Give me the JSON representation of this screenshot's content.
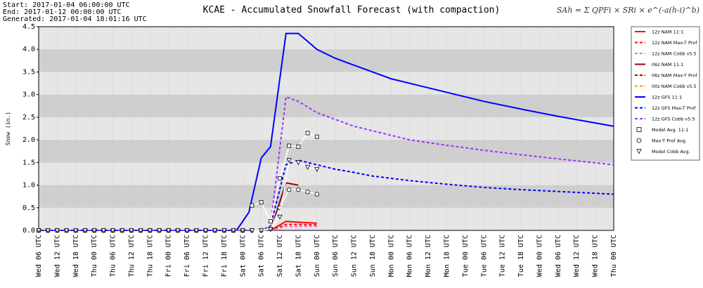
{
  "chart_data": {
    "type": "line",
    "title": "KCAE - Accumulated Snowfall Forecast (with compaction)",
    "header_lines": [
      "Start: 2017-01-04 06:00:00 UTC",
      "End: 2017-01-12 00:00:00 UTC",
      "Generated: 2017-01-04 18:01:16 UTC"
    ],
    "formula": "SAh = Σ QPFi × SRi × e^(-a(h-i)^b)",
    "y_label": "Snow (in.)",
    "xlim": [
      0,
      186
    ],
    "ylim": [
      0,
      4.5
    ],
    "yticks": [
      {
        "value": 0,
        "label": "0.0"
      },
      0.5,
      {
        "value": 1,
        "label": "1.0"
      },
      1.5,
      {
        "value": 2,
        "label": "2.0"
      },
      2.5,
      {
        "value": 3,
        "label": "3.0"
      },
      3.5,
      {
        "value": 4,
        "label": "4.0"
      },
      4.5
    ],
    "xticks": [
      {
        "value": 0,
        "label": "Wed 06 UTC"
      },
      {
        "value": 6,
        "label": "Wed 12 UTC"
      },
      {
        "value": 12,
        "label": "Wed 18 UTC"
      },
      {
        "value": 18,
        "label": "Thu 00 UTC"
      },
      {
        "value": 24,
        "label": "Thu 06 UTC"
      },
      {
        "value": 30,
        "label": "Thu 12 UTC"
      },
      {
        "value": 36,
        "label": "Thu 18 UTC"
      },
      {
        "value": 42,
        "label": "Fri 00 UTC"
      },
      {
        "value": 48,
        "label": "Fri 06 UTC"
      },
      {
        "value": 54,
        "label": "Fri 12 UTC"
      },
      {
        "value": 60,
        "label": "Fri 18 UTC"
      },
      {
        "value": 66,
        "label": "Sat 00 UTC"
      },
      {
        "value": 72,
        "label": "Sat 06 UTC"
      },
      {
        "value": 78,
        "label": "Sat 12 UTC"
      },
      {
        "value": 84,
        "label": "Sat 18 UTC"
      },
      {
        "value": 90,
        "label": "Sun 00 UTC"
      },
      {
        "value": 96,
        "label": "Sun 06 UTC"
      },
      {
        "value": 102,
        "label": "Sun 12 UTC"
      },
      {
        "value": 108,
        "label": "Sun 18 UTC"
      },
      {
        "value": 114,
        "label": "Mon 00 UTC"
      },
      {
        "value": 120,
        "label": "Mon 06 UTC"
      },
      {
        "value": 126,
        "label": "Mon 12 UTC"
      },
      {
        "value": 132,
        "label": "Mon 18 UTC"
      },
      {
        "value": 138,
        "label": "Tue 00 UTC"
      },
      {
        "value": 144,
        "label": "Tue 06 UTC"
      },
      {
        "value": 150,
        "label": "Tue 12 UTC"
      },
      {
        "value": 156,
        "label": "Tue 18 UTC"
      },
      {
        "value": 162,
        "label": "Wed 00 UTC"
      },
      {
        "value": 168,
        "label": "Wed 06 UTC"
      },
      {
        "value": 174,
        "label": "Wed 12 UTC"
      },
      {
        "value": 180,
        "label": "Wed 18 UTC"
      },
      {
        "value": 186,
        "label": "Thu 00 UTC"
      }
    ],
    "grid": true,
    "bands": true,
    "legend": "right",
    "x": [
      0,
      64,
      68,
      72,
      75,
      80,
      84,
      90,
      96,
      102,
      108,
      114,
      120,
      132,
      144,
      156,
      168,
      186
    ],
    "series": [
      {
        "name": "12z NAM 11:1",
        "color": "#ff0000",
        "dash": "solid",
        "values": [
          null,
          null,
          null,
          null,
          0,
          0.2,
          0.18,
          0.16,
          null,
          null,
          null,
          null,
          null,
          null,
          null,
          null,
          null,
          null
        ]
      },
      {
        "name": "12z NAM Max-T Prof",
        "color": "#ff0000",
        "dash": "dashed",
        "values": [
          null,
          null,
          null,
          null,
          0,
          0.13,
          0.13,
          0.12,
          null,
          null,
          null,
          null,
          null,
          null,
          null,
          null,
          null,
          null
        ]
      },
      {
        "name": "12z NAM Cobb v5.5",
        "color": "#ff66cc",
        "dash": "dashed",
        "values": [
          null,
          null,
          null,
          null,
          0,
          0.09,
          0.09,
          0.09,
          null,
          null,
          null,
          null,
          null,
          null,
          null,
          null,
          null,
          null
        ]
      },
      {
        "name": "06z NAM 11:1",
        "color": "#990000",
        "dash": "solid",
        "values": [
          null,
          null,
          null,
          null,
          0,
          1.05,
          1.0,
          null,
          null,
          null,
          null,
          null,
          null,
          null,
          null,
          null,
          null,
          null
        ]
      },
      {
        "name": "06z NAM Max-T Prof",
        "color": "#990000",
        "dash": "dashed",
        "values": [
          null,
          null,
          null,
          null,
          null,
          null,
          null,
          null,
          null,
          null,
          null,
          null,
          null,
          null,
          null,
          null,
          null,
          null
        ]
      },
      {
        "name": "00z NAM Cobb v5.5",
        "color": "#ff9900",
        "dash": "dashed",
        "values": [
          0,
          0,
          null,
          null,
          null,
          null,
          null,
          null,
          null,
          null,
          null,
          null,
          null,
          null,
          null,
          null,
          null,
          null
        ]
      },
      {
        "name": "12z GFS 11:1",
        "color": "#0000ff",
        "dash": "solid",
        "values": [
          0,
          0,
          0.4,
          1.6,
          1.85,
          4.35,
          4.35,
          4.0,
          3.8,
          3.65,
          3.5,
          3.35,
          3.25,
          3.05,
          2.85,
          2.68,
          2.52,
          2.3
        ]
      },
      {
        "name": "12z GFS Max-T Prof",
        "color": "#0000ff",
        "dash": "dashed",
        "values": [
          0,
          0,
          0,
          0,
          0.1,
          1.45,
          1.55,
          1.45,
          1.35,
          1.28,
          1.2,
          1.15,
          1.1,
          1.02,
          0.95,
          0.9,
          0.86,
          0.8
        ]
      },
      {
        "name": "12z GFS Cobb v5.5",
        "color": "#9933ff",
        "dash": "dashed",
        "values": [
          0,
          0,
          0,
          0,
          0.1,
          2.95,
          2.85,
          2.6,
          2.45,
          2.3,
          2.2,
          2.1,
          2.0,
          1.88,
          1.77,
          1.67,
          1.58,
          1.45
        ]
      },
      {
        "name": "Model Avg. 11:1",
        "color": "#000000",
        "marker": "square",
        "x": [
          0,
          3,
          6,
          9,
          12,
          15,
          18,
          21,
          24,
          27,
          30,
          33,
          36,
          39,
          42,
          45,
          48,
          51,
          54,
          57,
          60,
          63,
          66,
          69,
          72,
          75,
          78,
          81,
          84,
          87,
          90
        ],
        "values": [
          0,
          0,
          0,
          0,
          0,
          0,
          0,
          0,
          0,
          0,
          0,
          0,
          0,
          0,
          0,
          0,
          0,
          0,
          0,
          0,
          0,
          0,
          0,
          0.55,
          0.62,
          0.2,
          1.15,
          1.87,
          1.85,
          2.15,
          2.07
        ]
      },
      {
        "name": "Max-T Prof Avg.",
        "color": "#000000",
        "marker": "circle",
        "x": [
          0,
          3,
          6,
          9,
          12,
          15,
          18,
          21,
          24,
          27,
          30,
          33,
          36,
          39,
          42,
          45,
          48,
          51,
          54,
          57,
          60,
          63,
          66,
          69,
          72,
          75,
          78,
          81,
          84,
          87,
          90
        ],
        "values": [
          0,
          0,
          0,
          0,
          0,
          0,
          0,
          0,
          0,
          0,
          0,
          0,
          0,
          0,
          0,
          0,
          0,
          0,
          0,
          0,
          0,
          0,
          0,
          0,
          0,
          0.03,
          0.5,
          0.9,
          0.9,
          0.85,
          0.8
        ]
      },
      {
        "name": "Model Cobb Avg.",
        "color": "#000000",
        "marker": "triangle",
        "x": [
          0,
          3,
          6,
          9,
          12,
          15,
          18,
          21,
          24,
          27,
          30,
          33,
          36,
          39,
          42,
          45,
          48,
          51,
          54,
          57,
          60,
          63,
          66,
          69,
          72,
          75,
          78,
          81,
          84,
          87,
          90
        ],
        "values": [
          0,
          0,
          0,
          0,
          0,
          0,
          0,
          0,
          0,
          0,
          0,
          0,
          0,
          0,
          0,
          0,
          0,
          0,
          0,
          0,
          0,
          0,
          0,
          0,
          0,
          0.03,
          0.3,
          1.55,
          1.5,
          1.4,
          1.35
        ]
      }
    ]
  }
}
